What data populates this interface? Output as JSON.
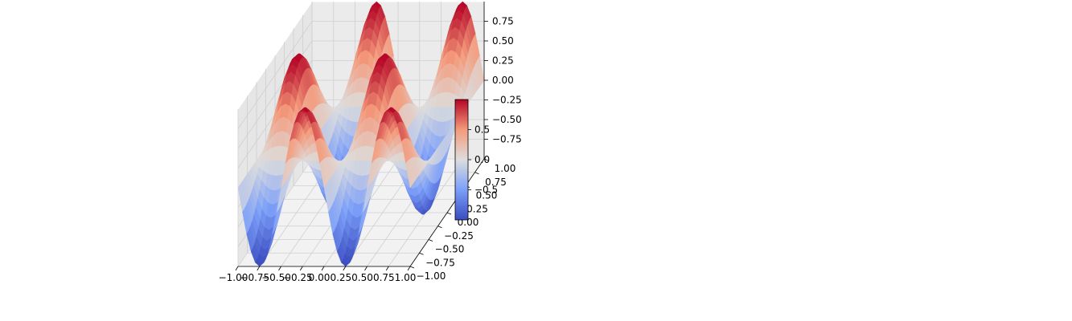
{
  "chart_data": {
    "type": "surface",
    "title": "",
    "colormap": "coolwarm",
    "colors": {
      "low": "#3b4cc0",
      "mid": "#dddddd",
      "high": "#b40426"
    },
    "x": {
      "range": [
        -1.0,
        1.0
      ],
      "ticks": [
        "−1.00",
        "−0.75",
        "−0.50",
        "−0.25",
        "0.00",
        "0.25",
        "0.50",
        "0.75",
        "1.00"
      ]
    },
    "y": {
      "range": [
        -1.0,
        1.0
      ],
      "ticks": [
        "−1.00",
        "−0.75",
        "−0.50",
        "−0.25",
        "0.00",
        "0.25",
        "0.50",
        "0.75",
        "1.00"
      ]
    },
    "z": {
      "range": [
        -1.0,
        1.0
      ],
      "ticks": [
        "−0.75",
        "−0.50",
        "−0.25",
        "0.00",
        "0.25",
        "0.50",
        "0.75"
      ]
    },
    "colorbar": {
      "range": [
        -1.0,
        1.0
      ],
      "ticks": [
        "−0.5",
        "0.0",
        "0.5"
      ]
    },
    "grid": true,
    "surface_formula": "z = sin(2πx)·cos(πy)"
  }
}
